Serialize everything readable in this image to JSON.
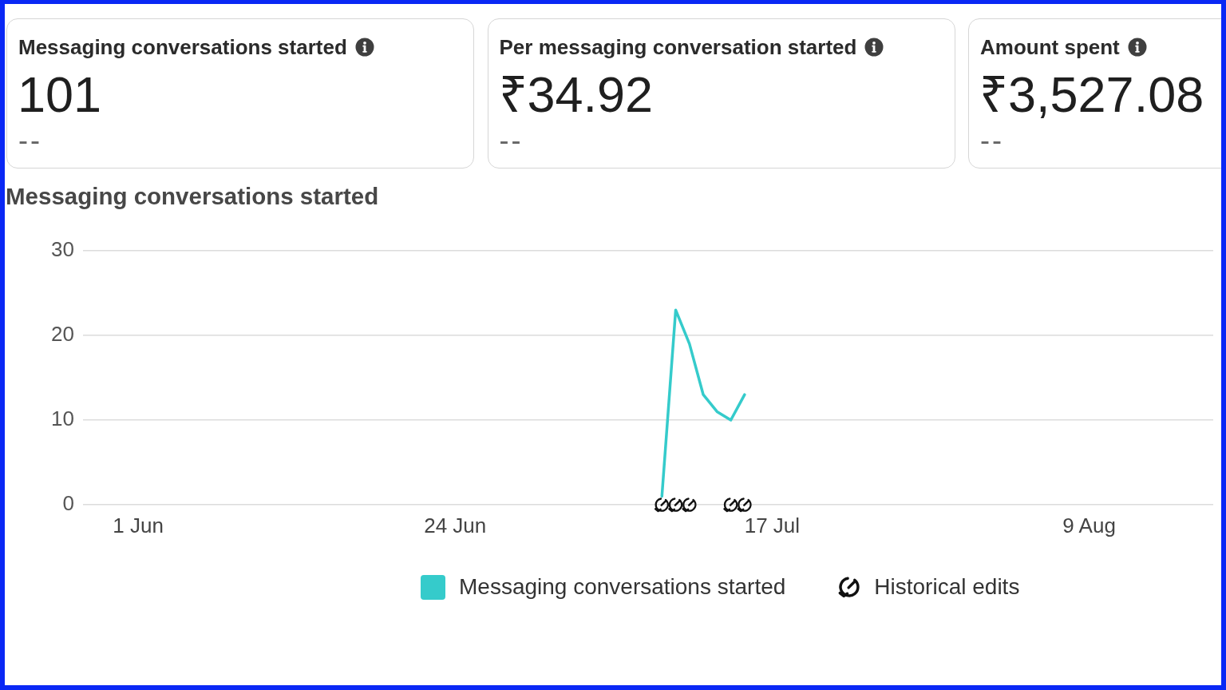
{
  "chart_data": [
    {
      "type": "other",
      "title": "Messaging conversations started",
      "annotations": [
        "101",
        "--"
      ]
    },
    {
      "type": "other",
      "title": "Per messaging conversation started",
      "annotations": [
        "₹34.92",
        "--"
      ]
    },
    {
      "type": "other",
      "title": "Amount spent",
      "annotations": [
        "₹3,527.08",
        "--"
      ]
    },
    {
      "type": "line",
      "title": "Messaging conversations started",
      "x": [
        "--07-09",
        "--07-10",
        "--07-11",
        "--07-12",
        "--07-13",
        "--07-14",
        "--07-15"
      ],
      "series": [
        {
          "name": "Messaging conversations started",
          "color": "#35cbcb",
          "values": [
            1,
            23,
            19,
            13,
            11,
            10,
            13
          ]
        },
        {
          "name": "Historical edits",
          "type": "scatter",
          "color": "#111111",
          "x": [
            "--07-09",
            "--07-10",
            "--07-11",
            "--07-14",
            "--07-15"
          ],
          "values": [
            0,
            0,
            0,
            0,
            0
          ]
        }
      ],
      "xlim": [
        "--05-28",
        "--08-18"
      ],
      "xticks": [
        {
          "value": "--06-01",
          "label": "1 Jun"
        },
        {
          "value": "--06-24",
          "label": "24 Jun"
        },
        {
          "value": "--07-17",
          "label": "17 Jul"
        },
        {
          "value": "--08-09",
          "label": "9 Aug"
        }
      ],
      "ylim": [
        0,
        30
      ],
      "yticks": [
        0,
        10,
        20,
        30
      ],
      "grid": "y",
      "legend": "bottom"
    }
  ]
}
